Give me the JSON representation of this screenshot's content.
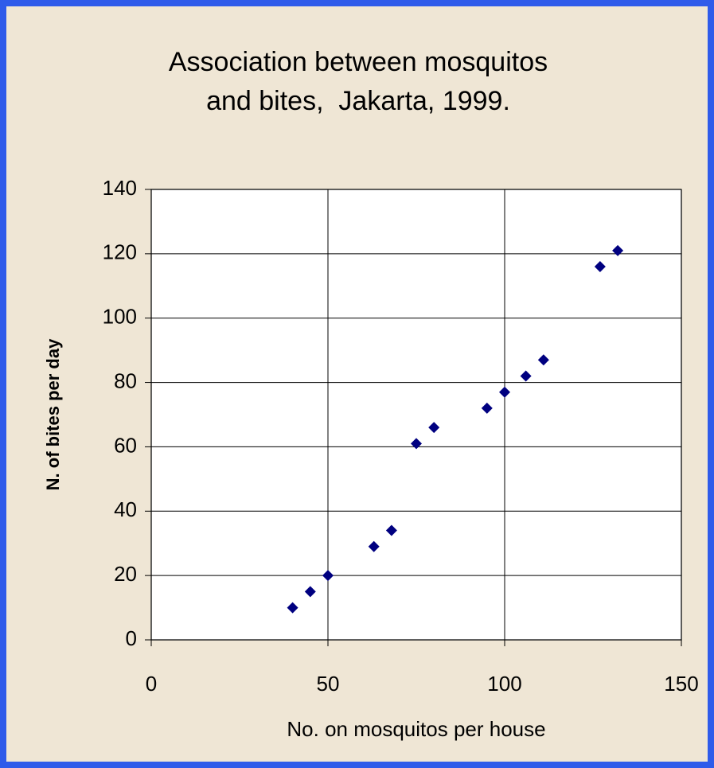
{
  "chart_data": {
    "type": "scatter",
    "title": [
      "Association between mosquitos",
      "and bites,  Jakarta, 1999."
    ],
    "xlabel": "No. on mosquitos per house",
    "ylabel": "N. of bites per day",
    "x": [
      40,
      45,
      50,
      63,
      68,
      75,
      80,
      95,
      100,
      106,
      111,
      127,
      132
    ],
    "values": [
      10,
      15,
      20,
      29,
      34,
      61,
      66,
      72,
      77,
      82,
      87,
      116,
      121
    ],
    "color": "#000080",
    "xlim": [
      0,
      150
    ],
    "xticks": [
      0,
      50,
      100,
      150
    ],
    "ylim": [
      0,
      140
    ],
    "yticks": [
      0,
      20,
      40,
      60,
      80,
      100,
      120,
      140
    ],
    "grid": true
  }
}
